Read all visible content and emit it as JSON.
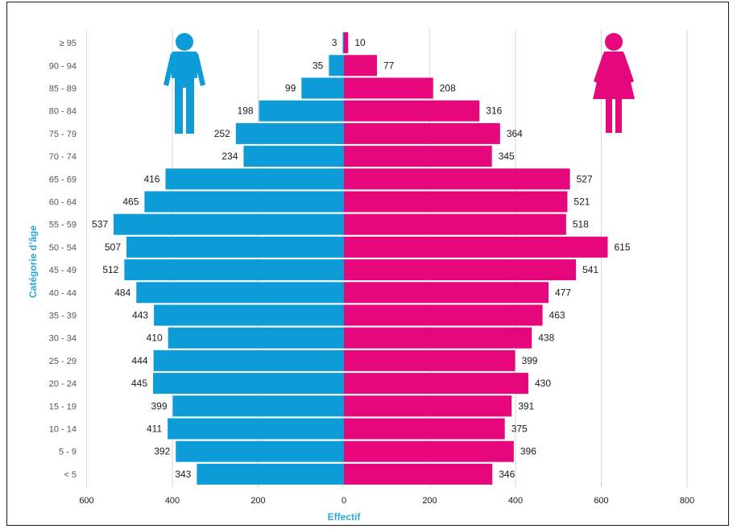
{
  "chart_data": {
    "type": "bar",
    "orientation": "horizontal-population-pyramid",
    "title": "",
    "xlabel": "Effectif",
    "ylabel": "Catégorie d’âge",
    "xlim": [
      -600,
      800
    ],
    "x_ticks": [
      -600,
      -400,
      -200,
      0,
      200,
      400,
      600,
      800
    ],
    "x_tick_labels": [
      "600",
      "400",
      "200",
      "0",
      "200",
      "400",
      "600",
      "800"
    ],
    "grid": "vertical",
    "categories": [
      "≥ 95",
      "90 - 94",
      "85 - 89",
      "80 - 84",
      "75 - 79",
      "70 - 74",
      "65 - 69",
      "60 - 64",
      "55 - 59",
      "50 - 54",
      "45 - 49",
      "40 - 44",
      "35 - 39",
      "30 - 34",
      "25 - 29",
      "20 - 24",
      "15 - 19",
      "10 - 14",
      "5 - 9",
      "< 5"
    ],
    "series": [
      {
        "side": "left",
        "color": "#0e9cd8",
        "icon": "male-person-icon",
        "values": [
          3,
          35,
          99,
          198,
          252,
          234,
          416,
          465,
          537,
          507,
          512,
          484,
          443,
          410,
          444,
          445,
          399,
          411,
          392,
          343
        ]
      },
      {
        "side": "right",
        "color": "#e5077b",
        "icon": "female-person-icon",
        "values": [
          10,
          77,
          208,
          316,
          364,
          345,
          527,
          521,
          518,
          615,
          541,
          477,
          463,
          438,
          399,
          430,
          391,
          375,
          396,
          346
        ]
      }
    ]
  }
}
